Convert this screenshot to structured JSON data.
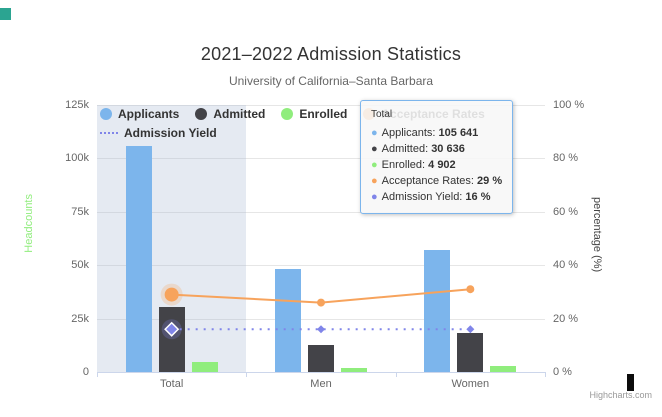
{
  "page": {
    "credit": "Highcharts.com"
  },
  "chart": {
    "title": "2021–2022 Admission Statistics",
    "subtitle": "University of California–Santa Barbara"
  },
  "legend": {
    "items": [
      {
        "label": "Applicants",
        "color": "#7cb5ec",
        "symbol": "circle"
      },
      {
        "label": "Admitted",
        "color": "#434348",
        "symbol": "circle"
      },
      {
        "label": "Enrolled",
        "color": "#90ed7d",
        "symbol": "circle"
      },
      {
        "label": "Acceptance Rates",
        "color": "#f7a35c",
        "symbol": "circle"
      },
      {
        "label": "Admission Yield",
        "color": "#8085e9",
        "symbol": "dotted-line"
      }
    ]
  },
  "axes": {
    "left": {
      "title": "Headcounts",
      "color": "#90ed7d",
      "ticks": [
        "0",
        "25k",
        "50k",
        "75k",
        "100k",
        "125k"
      ]
    },
    "right": {
      "title": "percentage (%)",
      "color": "#444444",
      "ticks": [
        "0 %",
        "20 %",
        "40 %",
        "60 %",
        "80 %",
        "100 %"
      ]
    },
    "x": {
      "categories": [
        "Total",
        "Men",
        "Women"
      ]
    }
  },
  "chart_data": {
    "type": "combo",
    "categories": [
      "Total",
      "Men",
      "Women"
    ],
    "ylim_left": [
      0,
      125000
    ],
    "ylim_right": [
      0,
      100
    ],
    "grid": true,
    "legend_position": "top-left",
    "highlighted_category": "Total",
    "series": [
      {
        "name": "Applicants",
        "type": "column",
        "axis": "left",
        "color": "#7cb5ec",
        "values": [
          105641,
          48000,
          57000
        ]
      },
      {
        "name": "Admitted",
        "type": "column",
        "axis": "left",
        "color": "#434348",
        "values": [
          30636,
          12500,
          18100
        ]
      },
      {
        "name": "Enrolled",
        "type": "column",
        "axis": "left",
        "color": "#90ed7d",
        "values": [
          4902,
          2000,
          2900
        ]
      },
      {
        "name": "Acceptance Rates",
        "type": "line",
        "axis": "right",
        "color": "#f7a35c",
        "marker": "circle",
        "values": [
          29,
          26,
          31
        ]
      },
      {
        "name": "Admission Yield",
        "type": "line",
        "axis": "right",
        "color": "#8085e9",
        "marker": "diamond",
        "dash": "dot",
        "values": [
          16,
          16,
          16
        ]
      }
    ]
  },
  "tooltip": {
    "header": "Total",
    "rows": [
      {
        "label": "Applicants",
        "value": "105 641",
        "color": "#7cb5ec"
      },
      {
        "label": "Admitted",
        "value": "30 636",
        "color": "#434348"
      },
      {
        "label": "Enrolled",
        "value": "4 902",
        "color": "#90ed7d"
      },
      {
        "label": "Acceptance Rates",
        "value": "29 %",
        "color": "#f7a35c"
      },
      {
        "label": "Admission Yield",
        "value": "16 %",
        "color": "#8085e9"
      }
    ]
  }
}
